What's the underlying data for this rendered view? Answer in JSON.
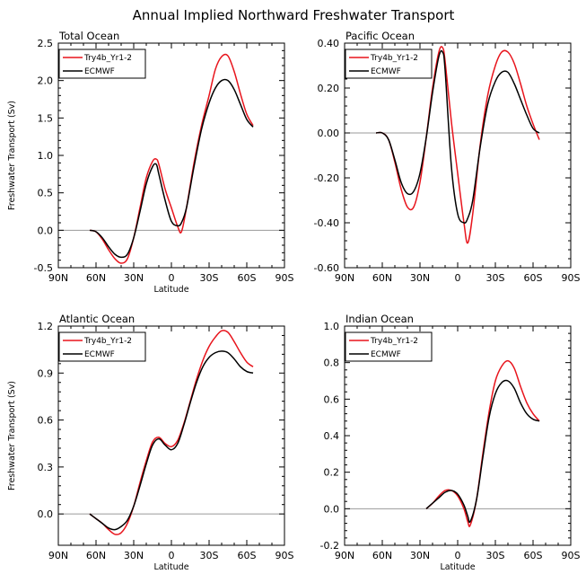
{
  "figure": {
    "title": "Annual Implied Northward Freshwater Transport"
  },
  "legend_series": [
    {
      "name": "Try4b_Yr1-2",
      "color": "#e8141c"
    },
    {
      "name": "ECMWF",
      "color": "#000000"
    }
  ],
  "chart_data": [
    {
      "type": "line",
      "title": "Total Ocean",
      "xlabel": "Latitude",
      "ylabel": "Freshwater Transport (Sv)",
      "x_ticks": [
        "90N",
        "60N",
        "30N",
        "0",
        "30S",
        "60S",
        "90S"
      ],
      "xlim": [
        -90,
        90
      ],
      "ylim": [
        -0.5,
        2.5
      ],
      "y_ticks": [
        "-0.5",
        "0.0",
        "0.5",
        "1.0",
        "1.5",
        "2.0",
        "2.5"
      ],
      "zero_line": true,
      "legend": "top-left",
      "series": [
        {
          "name": "Try4b_Yr1-2",
          "color": "#e8141c",
          "x": [
            -65,
            -60,
            -55,
            -50,
            -45,
            -40,
            -35,
            -30,
            -25,
            -20,
            -15,
            -12,
            -10,
            -5,
            0,
            5,
            8,
            12,
            18,
            24,
            30,
            35,
            40,
            45,
            50,
            55,
            60,
            65
          ],
          "y": [
            0,
            -0.02,
            -0.12,
            -0.26,
            -0.38,
            -0.44,
            -0.38,
            -0.1,
            0.3,
            0.7,
            0.92,
            0.95,
            0.88,
            0.55,
            0.3,
            0.05,
            -0.02,
            0.3,
            0.9,
            1.4,
            1.8,
            2.15,
            2.32,
            2.33,
            2.12,
            1.82,
            1.55,
            1.4
          ]
        },
        {
          "name": "ECMWF",
          "color": "#000000",
          "x": [
            -65,
            -60,
            -55,
            -50,
            -45,
            -40,
            -35,
            -30,
            -25,
            -20,
            -15,
            -12,
            -10,
            -5,
            0,
            5,
            8,
            12,
            18,
            24,
            30,
            35,
            40,
            45,
            50,
            55,
            60,
            65
          ],
          "y": [
            0,
            -0.02,
            -0.1,
            -0.22,
            -0.32,
            -0.36,
            -0.32,
            -0.1,
            0.25,
            0.62,
            0.85,
            0.88,
            0.75,
            0.4,
            0.12,
            0.06,
            0.1,
            0.3,
            0.85,
            1.35,
            1.7,
            1.9,
            2.0,
            2.0,
            1.88,
            1.68,
            1.48,
            1.38
          ]
        }
      ]
    },
    {
      "type": "line",
      "title": "Pacific Ocean",
      "xlabel": "",
      "ylabel": "",
      "x_ticks": [
        "90N",
        "60N",
        "30N",
        "0",
        "30S",
        "60S",
        "90S"
      ],
      "xlim": [
        -90,
        90
      ],
      "ylim": [
        -0.6,
        0.4
      ],
      "y_ticks": [
        "-0.60",
        "-0.40",
        "-0.20",
        "0.00",
        "0.20",
        "0.40"
      ],
      "zero_line": true,
      "legend": "top-left",
      "series": [
        {
          "name": "Try4b_Yr1-2",
          "color": "#e8141c",
          "x": [
            -65,
            -60,
            -55,
            -50,
            -45,
            -40,
            -35,
            -30,
            -25,
            -20,
            -15,
            -12,
            -10,
            -5,
            0,
            5,
            8,
            12,
            18,
            24,
            30,
            35,
            40,
            45,
            50,
            55,
            60,
            65
          ],
          "y": [
            0,
            0,
            -0.03,
            -0.13,
            -0.25,
            -0.33,
            -0.33,
            -0.22,
            -0.02,
            0.2,
            0.36,
            0.38,
            0.32,
            0.05,
            -0.18,
            -0.4,
            -0.49,
            -0.36,
            -0.05,
            0.17,
            0.3,
            0.36,
            0.36,
            0.31,
            0.22,
            0.12,
            0.04,
            -0.03
          ]
        },
        {
          "name": "ECMWF",
          "color": "#000000",
          "x": [
            -65,
            -60,
            -55,
            -50,
            -45,
            -40,
            -35,
            -30,
            -25,
            -20,
            -15,
            -12,
            -10,
            -5,
            0,
            5,
            8,
            12,
            18,
            24,
            30,
            35,
            40,
            45,
            50,
            55,
            60,
            65
          ],
          "y": [
            0,
            0,
            -0.03,
            -0.12,
            -0.22,
            -0.27,
            -0.26,
            -0.18,
            -0.02,
            0.18,
            0.34,
            0.36,
            0.28,
            -0.15,
            -0.36,
            -0.4,
            -0.38,
            -0.3,
            -0.06,
            0.13,
            0.23,
            0.27,
            0.27,
            0.22,
            0.15,
            0.08,
            0.02,
            0
          ]
        }
      ]
    },
    {
      "type": "line",
      "title": "Atlantic Ocean",
      "xlabel": "Latitude",
      "ylabel": "Freshwater Transport (Sv)",
      "x_ticks": [
        "90N",
        "60N",
        "30N",
        "0",
        "30S",
        "60S",
        "90S"
      ],
      "xlim": [
        -90,
        90
      ],
      "ylim": [
        -0.2,
        1.2
      ],
      "y_ticks": [
        "0.0",
        "0.3",
        "0.6",
        "0.9",
        "1.2"
      ],
      "zero_line": true,
      "legend": "top-left",
      "series": [
        {
          "name": "Try4b_Yr1-2",
          "color": "#e8141c",
          "x": [
            -65,
            -60,
            -55,
            -50,
            -45,
            -40,
            -35,
            -30,
            -25,
            -20,
            -15,
            -10,
            -5,
            0,
            5,
            10,
            15,
            20,
            25,
            30,
            35,
            40,
            45,
            50,
            55,
            60,
            65
          ],
          "y": [
            0,
            -0.03,
            -0.06,
            -0.1,
            -0.13,
            -0.12,
            -0.06,
            0.05,
            0.2,
            0.34,
            0.46,
            0.49,
            0.45,
            0.43,
            0.47,
            0.58,
            0.72,
            0.86,
            0.98,
            1.07,
            1.13,
            1.17,
            1.16,
            1.1,
            1.03,
            0.97,
            0.94
          ]
        },
        {
          "name": "ECMWF",
          "color": "#000000",
          "x": [
            -65,
            -60,
            -55,
            -50,
            -45,
            -40,
            -35,
            -30,
            -25,
            -20,
            -15,
            -10,
            -5,
            0,
            5,
            10,
            15,
            20,
            25,
            30,
            35,
            40,
            45,
            50,
            55,
            60,
            65
          ],
          "y": [
            0,
            -0.03,
            -0.06,
            -0.09,
            -0.1,
            -0.08,
            -0.04,
            0.05,
            0.18,
            0.32,
            0.44,
            0.48,
            0.44,
            0.41,
            0.45,
            0.57,
            0.71,
            0.84,
            0.94,
            1.0,
            1.03,
            1.04,
            1.03,
            0.99,
            0.94,
            0.91,
            0.9
          ]
        }
      ]
    },
    {
      "type": "line",
      "title": "Indian Ocean",
      "xlabel": "Latitude",
      "ylabel": "",
      "x_ticks": [
        "90N",
        "60N",
        "30N",
        "0",
        "30S",
        "60S",
        "90S"
      ],
      "xlim": [
        -90,
        90
      ],
      "ylim": [
        -0.2,
        1.0
      ],
      "y_ticks": [
        "-0.2",
        "0.0",
        "0.2",
        "0.4",
        "0.6",
        "0.8",
        "1.0"
      ],
      "zero_line": true,
      "legend": "top-left",
      "series": [
        {
          "name": "Try4b_Yr1-2",
          "color": "#e8141c",
          "x": [
            -25,
            -20,
            -15,
            -10,
            -5,
            0,
            5,
            8,
            10,
            15,
            20,
            25,
            30,
            35,
            40,
            45,
            50,
            55,
            60,
            65
          ],
          "y": [
            0,
            0.03,
            0.07,
            0.1,
            0.1,
            0.07,
            0,
            -0.07,
            -0.09,
            0.05,
            0.3,
            0.53,
            0.7,
            0.78,
            0.81,
            0.77,
            0.67,
            0.58,
            0.52,
            0.48
          ]
        },
        {
          "name": "ECMWF",
          "color": "#000000",
          "x": [
            -25,
            -20,
            -15,
            -10,
            -5,
            0,
            5,
            8,
            10,
            15,
            20,
            25,
            30,
            35,
            40,
            45,
            50,
            55,
            60,
            65
          ],
          "y": [
            0,
            0.03,
            0.06,
            0.09,
            0.1,
            0.08,
            0.02,
            -0.04,
            -0.07,
            0.05,
            0.28,
            0.5,
            0.63,
            0.69,
            0.7,
            0.66,
            0.58,
            0.52,
            0.49,
            0.48
          ]
        }
      ]
    }
  ]
}
